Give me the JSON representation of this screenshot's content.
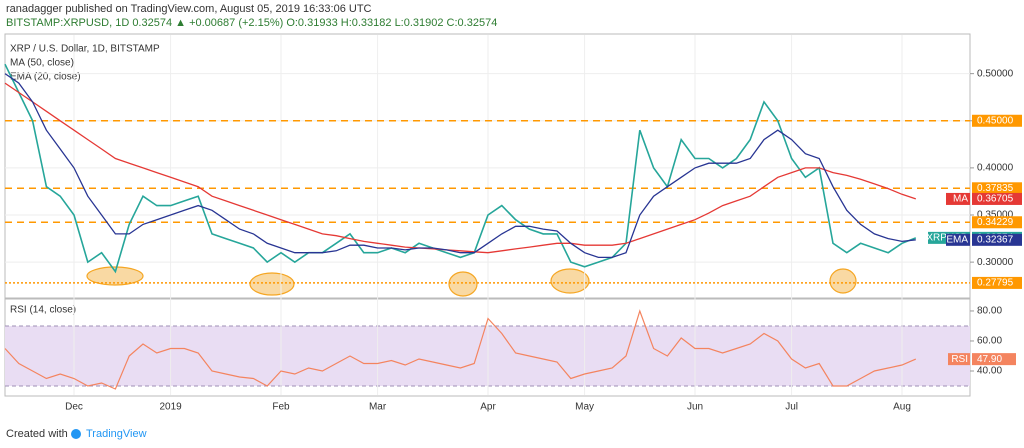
{
  "header": {
    "publisher": "ranadagger published on TradingView.com, August 05, 2019 16:33:06 UTC",
    "symbol_line": "BITSTAMP:XRPUSD, 1D  0.32574 ▲ +0.00687 (+2.15%) O:0.31933 H:0.33182 L:0.31902 C:0.32574"
  },
  "chart_data": {
    "type": "line",
    "title": "XRP / U.S. Dollar, 1D, BITSTAMP",
    "categories": [
      null,
      null,
      null,
      null,
      null,
      "Dec",
      null,
      null,
      null,
      null,
      null,
      null,
      "2019",
      null,
      null,
      null,
      null,
      null,
      null,
      null,
      "Feb",
      null,
      null,
      null,
      null,
      null,
      null,
      "Mar",
      null,
      null,
      null,
      null,
      null,
      null,
      null,
      "Apr",
      null,
      null,
      null,
      null,
      null,
      null,
      "May",
      null,
      null,
      null,
      null,
      null,
      null,
      null,
      "Jun",
      null,
      null,
      null,
      null,
      null,
      null,
      "Jul",
      null,
      null,
      null,
      null,
      null,
      null,
      null,
      "Aug",
      null
    ],
    "series": [
      {
        "name": "XRPUSD",
        "color": "#26a69a",
        "values": [
          0.51,
          0.48,
          0.45,
          0.38,
          0.37,
          0.35,
          0.3,
          0.31,
          0.29,
          0.34,
          0.37,
          0.36,
          0.36,
          0.365,
          0.37,
          0.33,
          0.325,
          0.32,
          0.315,
          0.3,
          0.31,
          0.3,
          0.31,
          0.31,
          0.32,
          0.33,
          0.31,
          0.31,
          0.315,
          0.31,
          0.32,
          0.315,
          0.31,
          0.305,
          0.31,
          0.35,
          0.36,
          0.345,
          0.335,
          0.33,
          0.33,
          0.3,
          0.295,
          0.3,
          0.305,
          0.32,
          0.44,
          0.4,
          0.38,
          0.43,
          0.41,
          0.41,
          0.4,
          0.41,
          0.43,
          0.47,
          0.45,
          0.41,
          0.39,
          0.4,
          0.32,
          0.31,
          0.32,
          0.315,
          0.31,
          0.32,
          0.32574
        ]
      },
      {
        "name": "MA (50, close)",
        "tag": "MA",
        "color": "#e53935",
        "values": [
          0.49,
          0.48,
          0.47,
          0.46,
          0.45,
          0.44,
          0.43,
          0.42,
          0.41,
          0.405,
          0.4,
          0.395,
          0.39,
          0.385,
          0.38,
          0.37,
          0.365,
          0.36,
          0.355,
          0.35,
          0.345,
          0.34,
          0.335,
          0.33,
          0.328,
          0.325,
          0.322,
          0.32,
          0.318,
          0.316,
          0.315,
          0.314,
          0.313,
          0.312,
          0.311,
          0.31,
          0.312,
          0.314,
          0.316,
          0.318,
          0.32,
          0.32,
          0.318,
          0.318,
          0.318,
          0.32,
          0.325,
          0.33,
          0.335,
          0.34,
          0.345,
          0.352,
          0.36,
          0.365,
          0.37,
          0.38,
          0.39,
          0.395,
          0.4,
          0.4,
          0.395,
          0.392,
          0.388,
          0.383,
          0.378,
          0.372,
          0.36705
        ]
      },
      {
        "name": "EMA (20, close)",
        "tag": "EMA",
        "color": "#283593",
        "values": [
          0.5,
          0.49,
          0.47,
          0.44,
          0.42,
          0.4,
          0.37,
          0.35,
          0.33,
          0.33,
          0.34,
          0.345,
          0.35,
          0.355,
          0.36,
          0.355,
          0.345,
          0.335,
          0.33,
          0.32,
          0.315,
          0.31,
          0.31,
          0.31,
          0.312,
          0.318,
          0.318,
          0.315,
          0.315,
          0.313,
          0.315,
          0.315,
          0.313,
          0.31,
          0.31,
          0.32,
          0.33,
          0.338,
          0.338,
          0.335,
          0.333,
          0.32,
          0.31,
          0.305,
          0.305,
          0.31,
          0.35,
          0.37,
          0.38,
          0.39,
          0.4,
          0.405,
          0.405,
          0.405,
          0.41,
          0.43,
          0.44,
          0.43,
          0.415,
          0.41,
          0.38,
          0.355,
          0.34,
          0.33,
          0.325,
          0.322,
          0.32367
        ]
      }
    ],
    "ylim": [
      0.263,
      0.541
    ],
    "yticks": [
      {
        "value": 0.3,
        "label": "0.30000"
      },
      {
        "value": 0.35,
        "label": "0.35000"
      },
      {
        "value": 0.4,
        "label": "0.40000"
      },
      {
        "value": 0.45,
        "label": "0.45000"
      },
      {
        "value": 0.5,
        "label": "0.50000"
      }
    ],
    "grid": true,
    "levels": [
      {
        "value": 0.45,
        "label": "0.45000"
      },
      {
        "value": 0.37835,
        "label": "0.37835"
      },
      {
        "value": 0.34229,
        "label": "0.34229"
      },
      {
        "value": 0.27795,
        "label": "0.27795"
      }
    ],
    "level_color": "#ff9800",
    "rsi": {
      "name": "RSI (14, close)",
      "tag": "RSI",
      "color": "#f4845f",
      "band_color": "#e9ddf3",
      "values": [
        55,
        45,
        40,
        35,
        38,
        35,
        30,
        32,
        28,
        50,
        58,
        52,
        55,
        55,
        52,
        40,
        38,
        36,
        35,
        30,
        40,
        38,
        42,
        40,
        45,
        50,
        45,
        45,
        47,
        44,
        48,
        46,
        44,
        42,
        45,
        75,
        65,
        52,
        50,
        48,
        46,
        35,
        38,
        40,
        42,
        50,
        80,
        55,
        50,
        62,
        55,
        55,
        52,
        55,
        58,
        65,
        60,
        48,
        42,
        45,
        30,
        30,
        35,
        40,
        42,
        44,
        47.9
      ],
      "last_label": "47.90",
      "band": [
        30,
        70
      ],
      "ylim": [
        24,
        87.3
      ],
      "yticks": [
        {
          "value": 40,
          "label": "40.00"
        },
        {
          "value": 60,
          "label": "60.00"
        },
        {
          "value": 80,
          "label": "80.00"
        }
      ]
    }
  },
  "footer": {
    "created": "Created with",
    "brand": "TradingView"
  }
}
